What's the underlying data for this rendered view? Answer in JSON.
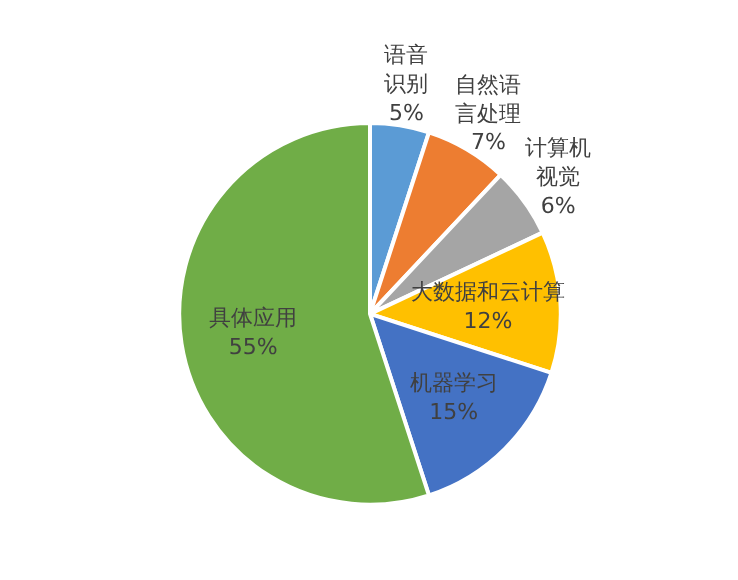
{
  "chart_data": {
    "type": "pie",
    "categories": [
      "语音识别",
      "自然语言处理",
      "计算机视觉",
      "大数据和云计算",
      "机器学习",
      "具体应用"
    ],
    "values": [
      5,
      7,
      6,
      12,
      15,
      55
    ],
    "colors": [
      "#5b9bd5",
      "#ed7d31",
      "#a5a5a5",
      "#ffc000",
      "#4472c4",
      "#70ad47"
    ],
    "value_labels": [
      "5%",
      "7%",
      "6%",
      "12%",
      "15%",
      "55%"
    ]
  }
}
